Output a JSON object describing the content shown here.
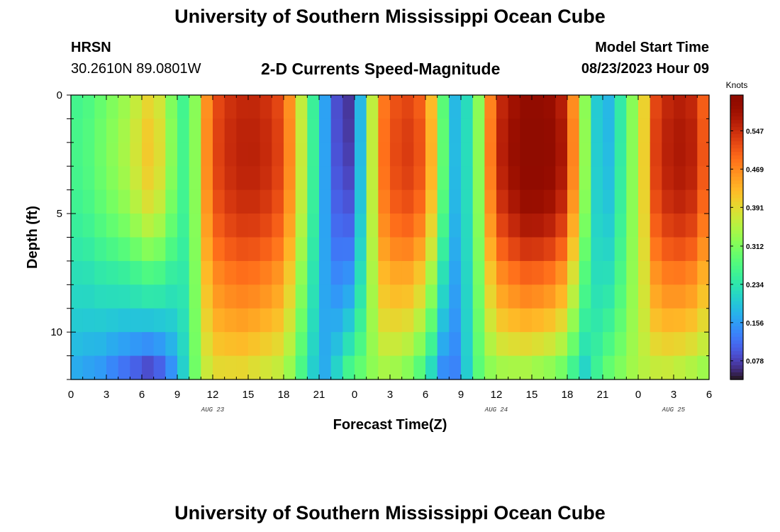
{
  "header": {
    "title": "University of Southern Mississippi Ocean Cube",
    "station": "HRSN",
    "coords": "30.2610N  89.0801W",
    "subtitle": "2-D Currents Speed-Magnitude",
    "model_start_label": "Model Start Time",
    "model_start_value": "08/23/2023 Hour 09"
  },
  "footer": {
    "title": "University of Southern Mississippi Ocean Cube"
  },
  "chart_data": {
    "type": "heatmap",
    "title": "2-D Currents Speed-Magnitude",
    "xlabel": "Forecast Time(Z)",
    "ylabel": "Depth (ft)",
    "x_range_hours": [
      0,
      54
    ],
    "y_range_ft": [
      0,
      12
    ],
    "x_ticks": [
      {
        "h": 0,
        "label": "0"
      },
      {
        "h": 3,
        "label": "3"
      },
      {
        "h": 6,
        "label": "6"
      },
      {
        "h": 9,
        "label": "9"
      },
      {
        "h": 12,
        "label": "12"
      },
      {
        "h": 15,
        "label": "15"
      },
      {
        "h": 18,
        "label": "18"
      },
      {
        "h": 21,
        "label": "21"
      },
      {
        "h": 24,
        "label": "0"
      },
      {
        "h": 27,
        "label": "3"
      },
      {
        "h": 30,
        "label": "6"
      },
      {
        "h": 33,
        "label": "9"
      },
      {
        "h": 36,
        "label": "12"
      },
      {
        "h": 39,
        "label": "15"
      },
      {
        "h": 42,
        "label": "18"
      },
      {
        "h": 45,
        "label": "21"
      },
      {
        "h": 48,
        "label": "0"
      },
      {
        "h": 51,
        "label": "3"
      },
      {
        "h": 54,
        "label": "6"
      }
    ],
    "date_labels": [
      {
        "h": 12,
        "label": "AUG 23"
      },
      {
        "h": 36,
        "label": "AUG 24"
      },
      {
        "h": 51,
        "label": "AUG 25"
      }
    ],
    "y_ticks": [
      {
        "v": 0,
        "label": "0"
      },
      {
        "v": 5,
        "label": "5"
      },
      {
        "v": 10,
        "label": "10"
      }
    ],
    "colorbar": {
      "unit": "Knots",
      "min": 0.04,
      "max": 0.62,
      "ticks": [
        0.078,
        0.156,
        0.234,
        0.312,
        0.391,
        0.469,
        0.547
      ],
      "tick_labels": [
        "0.078",
        "0.156",
        "0.234",
        "0.312",
        "0.391",
        "0.469",
        "0.547"
      ],
      "colormap": "turbo"
    },
    "grid": false,
    "rows": 12,
    "columns": 54,
    "surface_speed_knots_per_hour": [
      0.26,
      0.27,
      0.29,
      0.31,
      0.33,
      0.36,
      0.39,
      0.37,
      0.31,
      0.26,
      0.32,
      0.46,
      0.52,
      0.54,
      0.55,
      0.55,
      0.54,
      0.52,
      0.46,
      0.36,
      0.25,
      0.16,
      0.09,
      0.07,
      0.18,
      0.36,
      0.48,
      0.51,
      0.52,
      0.5,
      0.42,
      0.28,
      0.18,
      0.22,
      0.32,
      0.47,
      0.55,
      0.58,
      0.6,
      0.6,
      0.59,
      0.56,
      0.46,
      0.32,
      0.2,
      0.18,
      0.24,
      0.32,
      0.4,
      0.52,
      0.55,
      0.56,
      0.55,
      0.5
    ],
    "bottom_speed_knots_per_hour": [
      0.16,
      0.15,
      0.14,
      0.12,
      0.1,
      0.08,
      0.06,
      0.08,
      0.13,
      0.2,
      0.3,
      0.36,
      0.38,
      0.38,
      0.38,
      0.37,
      0.36,
      0.35,
      0.32,
      0.26,
      0.2,
      0.17,
      0.22,
      0.28,
      0.3,
      0.32,
      0.33,
      0.32,
      0.3,
      0.26,
      0.2,
      0.13,
      0.13,
      0.2,
      0.28,
      0.31,
      0.32,
      0.32,
      0.32,
      0.31,
      0.3,
      0.28,
      0.24,
      0.2,
      0.26,
      0.3,
      0.32,
      0.34,
      0.35,
      0.35,
      0.35,
      0.34,
      0.33,
      0.32
    ]
  }
}
